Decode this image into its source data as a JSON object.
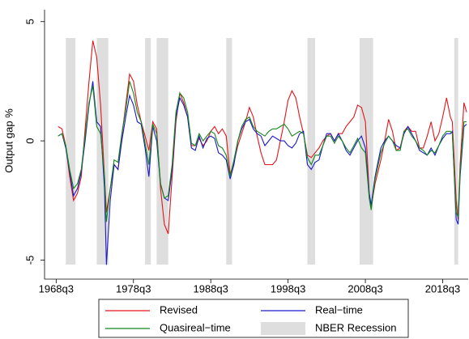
{
  "chart_data": {
    "type": "line",
    "y_label": "Output gap %",
    "xlim": [
      1967.0,
      2021.8
    ],
    "ylim": [
      -5.8,
      5.5
    ],
    "yticks": [
      -5,
      0,
      5
    ],
    "xticks": [
      {
        "value": 1968.5,
        "label": "1968q3"
      },
      {
        "value": 1978.5,
        "label": "1978q3"
      },
      {
        "value": 1988.5,
        "label": "1988q3"
      },
      {
        "value": 1998.5,
        "label": "1998q3"
      },
      {
        "value": 2008.5,
        "label": "2008q3"
      },
      {
        "value": 2018.5,
        "label": "2018q3"
      }
    ],
    "x": [
      1968.75,
      1969.25,
      1969.75,
      1970.25,
      1970.75,
      1971.25,
      1971.75,
      1972.25,
      1972.75,
      1973.25,
      1973.75,
      1974.25,
      1974.75,
      1975.0,
      1975.5,
      1976.0,
      1976.5,
      1977.0,
      1977.5,
      1978.0,
      1978.5,
      1979.0,
      1979.5,
      1980.0,
      1980.5,
      1981.0,
      1981.5,
      1982.0,
      1982.5,
      1983.0,
      1983.5,
      1984.0,
      1984.5,
      1985.0,
      1985.5,
      1986.0,
      1986.5,
      1987.0,
      1987.5,
      1988.0,
      1988.5,
      1989.0,
      1989.5,
      1990.0,
      1990.5,
      1991.0,
      1991.5,
      1992.0,
      1992.5,
      1993.0,
      1993.5,
      1994.0,
      1994.5,
      1995.0,
      1995.5,
      1996.0,
      1996.5,
      1997.0,
      1997.5,
      1998.0,
      1998.5,
      1999.0,
      1999.5,
      2000.0,
      2000.5,
      2001.0,
      2001.5,
      2002.0,
      2002.5,
      2003.0,
      2003.5,
      2004.0,
      2004.5,
      2005.0,
      2005.5,
      2006.0,
      2006.5,
      2007.0,
      2007.5,
      2008.0,
      2008.5,
      2009.0,
      2009.25,
      2009.75,
      2010.5,
      2011.0,
      2011.5,
      2012.0,
      2012.5,
      2013.0,
      2013.5,
      2014.0,
      2014.5,
      2015.0,
      2015.5,
      2016.0,
      2016.5,
      2017.0,
      2017.5,
      2018.0,
      2018.5,
      2019.0,
      2019.5,
      2019.75,
      2020.25,
      2020.5,
      2020.75,
      2021.25,
      2021.6
    ],
    "series": [
      {
        "name": "Revised",
        "color": "#e3151b",
        "values": [
          0.6,
          0.5,
          -0.2,
          -1.5,
          -2.5,
          -2.2,
          -1.5,
          0.5,
          2.5,
          4.2,
          3.5,
          1.5,
          -1.5,
          -3.0,
          -2.0,
          -1.0,
          -1.2,
          0.2,
          1.5,
          2.8,
          2.5,
          1.5,
          0.8,
          0.2,
          -0.4,
          0.8,
          0.5,
          -2.0,
          -3.5,
          -3.9,
          -1.5,
          0.8,
          2.0,
          1.6,
          1.0,
          -0.2,
          -0.2,
          0.1,
          -0.2,
          0.0,
          0.4,
          0.6,
          0.3,
          0.5,
          0.2,
          -1.4,
          -0.9,
          -0.2,
          0.3,
          0.8,
          1.4,
          1.0,
          0.2,
          -0.5,
          -1.0,
          -1.0,
          -1.0,
          -0.8,
          0.0,
          0.8,
          1.7,
          2.1,
          1.8,
          1.0,
          0.3,
          -0.6,
          -0.7,
          -0.5,
          -0.3,
          0.0,
          0.2,
          0.3,
          0.0,
          0.3,
          0.3,
          0.6,
          0.8,
          1.0,
          1.5,
          1.4,
          0.8,
          -2.2,
          -2.8,
          -1.8,
          -0.8,
          0.0,
          0.9,
          0.4,
          -0.4,
          -0.3,
          0.4,
          0.6,
          0.4,
          0.4,
          -0.3,
          -0.3,
          0.2,
          0.8,
          0.0,
          0.3,
          1.0,
          1.8,
          1.0,
          0.8,
          -2.5,
          -3.3,
          -1.0,
          1.6,
          1.2
        ]
      },
      {
        "name": "Real−time",
        "color": "#1a1acc",
        "values": [
          0.2,
          0.3,
          -0.3,
          -1.3,
          -2.3,
          -2.0,
          -1.3,
          0.0,
          1.5,
          2.5,
          0.8,
          0.6,
          -2.0,
          -5.2,
          -2.5,
          -1.0,
          -1.2,
          0.0,
          1.0,
          1.9,
          1.5,
          0.8,
          0.7,
          -0.3,
          -1.5,
          0.6,
          0.0,
          -1.8,
          -2.4,
          -2.5,
          -1.2,
          1.0,
          1.8,
          1.5,
          1.0,
          -0.3,
          -0.4,
          0.2,
          -0.3,
          0.1,
          0.2,
          0.1,
          -0.5,
          -0.6,
          -0.8,
          -1.6,
          -1.0,
          0.0,
          0.5,
          0.8,
          0.9,
          0.5,
          0.3,
          0.2,
          -0.2,
          0.0,
          0.2,
          0.1,
          0.0,
          0.0,
          -0.2,
          -0.3,
          -0.1,
          0.3,
          0.4,
          -1.0,
          -1.2,
          -0.9,
          -0.8,
          -0.2,
          0.3,
          0.3,
          0.0,
          0.3,
          0.0,
          -0.4,
          -0.6,
          -0.3,
          0.0,
          0.2,
          -0.3,
          -2.2,
          -2.7,
          -1.5,
          -0.3,
          0.0,
          0.2,
          0.0,
          -0.2,
          -0.3,
          0.3,
          0.6,
          0.3,
          0.0,
          -0.4,
          -0.5,
          -0.6,
          -0.3,
          -0.6,
          -0.2,
          0.1,
          0.3,
          0.3,
          0.4,
          -3.3,
          -3.5,
          -1.5,
          0.6,
          0.7
        ]
      },
      {
        "name": "Quasireal−time",
        "color": "#13871a",
        "values": [
          0.2,
          0.3,
          -0.2,
          -1.2,
          -2.0,
          -1.8,
          -1.2,
          0.2,
          1.6,
          2.3,
          0.6,
          0.3,
          -1.5,
          -3.4,
          -2.0,
          -0.8,
          -0.9,
          0.3,
          1.3,
          2.5,
          2.0,
          1.2,
          0.8,
          -0.1,
          -1.0,
          0.7,
          0.3,
          -1.8,
          -2.4,
          -2.3,
          -1.0,
          1.2,
          2.0,
          1.8,
          1.2,
          -0.1,
          -0.2,
          0.3,
          0.0,
          0.2,
          0.4,
          0.3,
          -0.2,
          -0.3,
          -0.6,
          -1.5,
          -0.8,
          0.0,
          0.6,
          0.9,
          1.0,
          0.6,
          0.4,
          0.3,
          0.2,
          0.4,
          0.5,
          0.5,
          0.6,
          0.7,
          0.5,
          0.2,
          0.3,
          0.4,
          0.3,
          -0.7,
          -1.0,
          -0.6,
          -0.6,
          -0.2,
          0.2,
          0.2,
          -0.1,
          0.2,
          0.0,
          -0.3,
          -0.5,
          -0.2,
          0.1,
          -0.3,
          -0.5,
          -2.4,
          -2.9,
          -1.6,
          -0.5,
          -0.1,
          0.2,
          0.0,
          -0.4,
          -0.4,
          0.4,
          0.5,
          0.2,
          0.0,
          -0.3,
          -0.4,
          -0.6,
          -0.4,
          -0.5,
          -0.2,
          0.2,
          0.4,
          0.4,
          0.3,
          -3.0,
          -3.2,
          -1.3,
          0.8,
          0.8
        ]
      }
    ],
    "recessions": {
      "name": "NBER Recession",
      "color": "#dedede",
      "ranges": [
        [
          1969.75,
          1971.0
        ],
        [
          1973.75,
          1975.25
        ],
        [
          1980.0,
          1980.75
        ],
        [
          1981.5,
          1983.0
        ],
        [
          1990.5,
          1991.25
        ],
        [
          2001.0,
          2002.0
        ],
        [
          2007.75,
          2009.5
        ],
        [
          2020.0,
          2020.5
        ]
      ]
    }
  }
}
